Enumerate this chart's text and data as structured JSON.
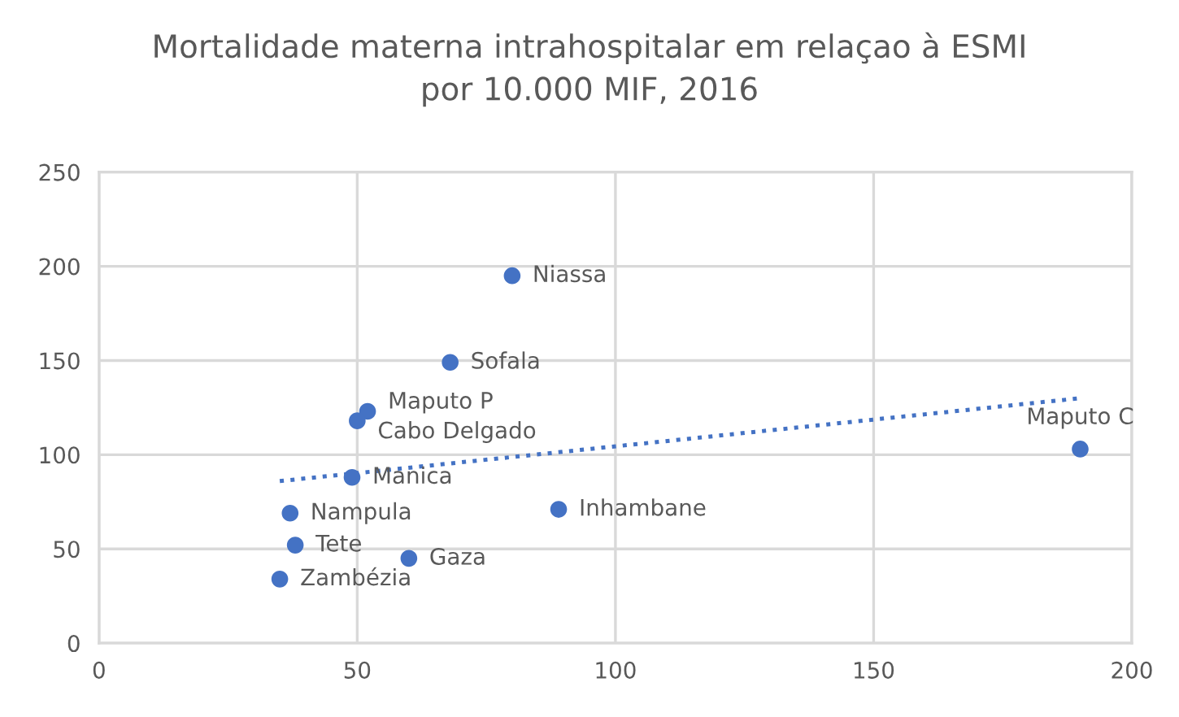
{
  "chart_data": {
    "type": "scatter",
    "title": "Mortalidade materna intrahospitalar em relaçao à ESMI\npor 10.000 MIF, 2016",
    "xlim": [
      0,
      200
    ],
    "xticks": [
      0,
      50,
      100,
      150,
      200
    ],
    "ylim": [
      0,
      250
    ],
    "yticks": [
      0,
      50,
      100,
      150,
      200,
      250
    ],
    "grid": true,
    "marker": "circle",
    "series": [
      {
        "color": "#4472c4",
        "x": [
          80,
          68,
          52,
          50,
          49,
          37,
          38,
          35,
          60,
          89,
          190
        ],
        "values": [
          195,
          149,
          123,
          118,
          88,
          69,
          52,
          34,
          45,
          71,
          103
        ],
        "value_labels": [
          "Niassa",
          "Sofala",
          "Maputo P",
          "Cabo Delgado",
          "Manica",
          "Nampula",
          "Tete",
          "Zambézia",
          "Gaza",
          "Inhambane",
          "Maputo C"
        ]
      },
      {
        "type": "line",
        "color": "#4472c4",
        "line_style": "dotted",
        "marker": "none",
        "x": [
          35,
          190
        ],
        "values": [
          86,
          130
        ]
      }
    ]
  }
}
